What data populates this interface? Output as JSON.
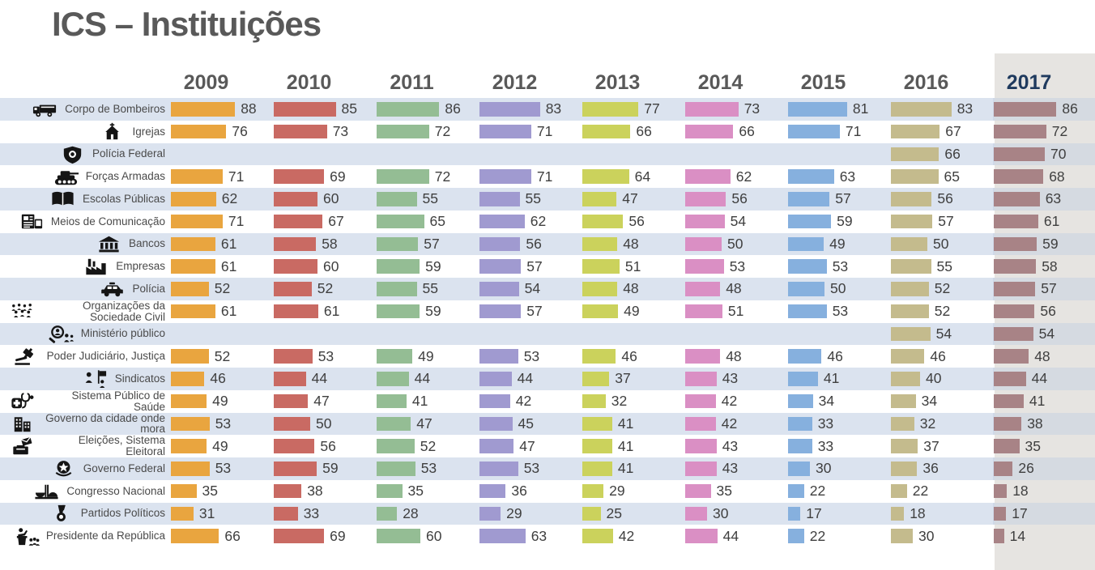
{
  "title": "ICS – Instituições",
  "highlight_year": "2017",
  "years": [
    {
      "label": "2009",
      "color": "#E9A53F",
      "highlight": false
    },
    {
      "label": "2010",
      "color": "#C96A63",
      "highlight": false
    },
    {
      "label": "2011",
      "color": "#94BD94",
      "highlight": false
    },
    {
      "label": "2012",
      "color": "#A09AD0",
      "highlight": false
    },
    {
      "label": "2013",
      "color": "#CBD25C",
      "highlight": false
    },
    {
      "label": "2014",
      "color": "#DA8FC4",
      "highlight": false
    },
    {
      "label": "2015",
      "color": "#86B0DE",
      "highlight": false
    },
    {
      "label": "2016",
      "color": "#C4BB8D",
      "highlight": false
    },
    {
      "label": "2017",
      "color": "#A88386",
      "highlight": true
    }
  ],
  "icons": [
    "fire-truck-icon",
    "church-icon",
    "police-badge-icon",
    "tank-icon",
    "open-book-icon",
    "newspaper-media-icon",
    "bank-icon",
    "factory-icon",
    "police-car-icon",
    "crowd-icon",
    "magnifier-person-icon",
    "gavel-icon",
    "union-flag-icon",
    "medical-cross-icon",
    "city-hall-icon",
    "ballot-box-icon",
    "coat-of-arms-icon",
    "congress-building-icon",
    "medal-icon",
    "president-podium-icon"
  ],
  "chart_data": {
    "type": "bar",
    "orientation": "horizontal",
    "title": "ICS – Instituições",
    "value_range": [
      0,
      100
    ],
    "legend_position": "top-as-column-headers",
    "grid": false,
    "categories": [
      "Corpo de Bombeiros",
      "Igrejas",
      "Polícia Federal",
      "Forças Armadas",
      "Escolas Públicas",
      "Meios de Comunicação",
      "Bancos",
      "Empresas",
      "Polícia",
      "Organizações da Sociedade Civil",
      "Ministério público",
      "Poder Judiciário, Justiça",
      "Sindicatos",
      "Sistema Público de Saúde",
      "Governo da cidade onde mora",
      "Eleições, Sistema Eleitoral",
      "Governo Federal",
      "Congresso Nacional",
      "Partidos Políticos",
      "Presidente da República"
    ],
    "series": [
      {
        "name": "2009",
        "values": [
          88,
          76,
          null,
          71,
          62,
          71,
          61,
          61,
          52,
          61,
          null,
          52,
          46,
          49,
          53,
          49,
          53,
          35,
          31,
          66
        ]
      },
      {
        "name": "2010",
        "values": [
          85,
          73,
          null,
          69,
          60,
          67,
          58,
          60,
          52,
          61,
          null,
          53,
          44,
          47,
          50,
          56,
          59,
          38,
          33,
          69
        ]
      },
      {
        "name": "2011",
        "values": [
          86,
          72,
          null,
          72,
          55,
          65,
          57,
          59,
          55,
          59,
          null,
          49,
          44,
          41,
          47,
          52,
          53,
          35,
          28,
          60
        ]
      },
      {
        "name": "2012",
        "values": [
          83,
          71,
          null,
          71,
          55,
          62,
          56,
          57,
          54,
          57,
          null,
          53,
          44,
          42,
          45,
          47,
          53,
          36,
          29,
          63
        ]
      },
      {
        "name": "2013",
        "values": [
          77,
          66,
          null,
          64,
          47,
          56,
          48,
          51,
          48,
          49,
          null,
          46,
          37,
          32,
          41,
          41,
          41,
          29,
          25,
          42
        ]
      },
      {
        "name": "2014",
        "values": [
          73,
          66,
          null,
          62,
          56,
          54,
          50,
          53,
          48,
          51,
          null,
          48,
          43,
          42,
          42,
          43,
          43,
          35,
          30,
          44
        ]
      },
      {
        "name": "2015",
        "values": [
          81,
          71,
          null,
          63,
          57,
          59,
          49,
          53,
          50,
          53,
          null,
          46,
          41,
          34,
          33,
          33,
          30,
          22,
          17,
          22
        ]
      },
      {
        "name": "2016",
        "values": [
          83,
          67,
          66,
          65,
          56,
          57,
          50,
          55,
          52,
          52,
          54,
          46,
          40,
          34,
          32,
          37,
          36,
          22,
          18,
          30
        ]
      },
      {
        "name": "2017",
        "values": [
          86,
          72,
          70,
          68,
          63,
          61,
          59,
          58,
          57,
          56,
          54,
          48,
          44,
          41,
          38,
          35,
          26,
          18,
          17,
          14
        ]
      }
    ]
  }
}
